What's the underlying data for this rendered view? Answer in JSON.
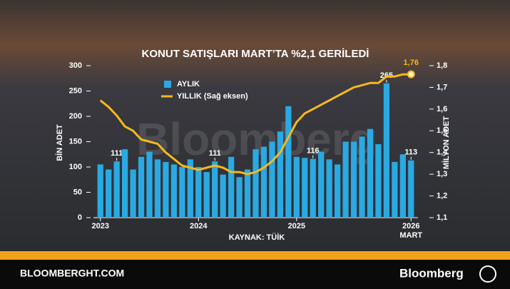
{
  "chart_data": {
    "type": "bar_line",
    "title": "KONUT SATIŞLARI MART’TA %2,1 GERİLEDİ",
    "y_label": "BİN ADET",
    "y2_label": "MİLYON ADET",
    "source": "KAYNAK: TÜİK",
    "watermark": "Bloomberg",
    "footer_left": "BLOOMBERGHT.COM",
    "footer_right": "Bloomberg",
    "categories": [
      "2023",
      null,
      null,
      null,
      null,
      null,
      null,
      null,
      null,
      null,
      null,
      null,
      "2024",
      null,
      null,
      null,
      null,
      null,
      null,
      null,
      null,
      null,
      null,
      null,
      "2025",
      null,
      null,
      null,
      null,
      null,
      null,
      null,
      null,
      null,
      null,
      null,
      null,
      null,
      "2026"
    ],
    "last_category_note": "MART",
    "ylim": [
      0,
      300
    ],
    "yticks": [
      0,
      50,
      100,
      150,
      200,
      250,
      300
    ],
    "y2lim": [
      1.1,
      1.8
    ],
    "y2ticks": [
      {
        "value": 1.1,
        "label": "1,1"
      },
      {
        "value": 1.2,
        "label": "1,2"
      },
      {
        "value": 1.3,
        "label": "1,3"
      },
      {
        "value": 1.4,
        "label": "1,4"
      },
      {
        "value": 1.5,
        "label": "1,5"
      },
      {
        "value": 1.6,
        "label": "1,6"
      },
      {
        "value": 1.7,
        "label": "1,7"
      },
      {
        "value": 1.8,
        "label": "1,8"
      }
    ],
    "series": [
      {
        "name": "AYLIK",
        "type": "bar",
        "color": "#2aa9e2",
        "values": [
          105,
          95,
          111,
          135,
          95,
          120,
          130,
          115,
          110,
          105,
          100,
          115,
          100,
          90,
          111,
          85,
          120,
          80,
          95,
          135,
          140,
          150,
          170,
          220,
          120,
          118,
          116,
          130,
          115,
          105,
          150,
          150,
          160,
          175,
          145,
          265,
          110,
          125,
          113
        ],
        "value_labels": [
          null,
          null,
          "111",
          null,
          null,
          null,
          null,
          null,
          null,
          null,
          null,
          null,
          null,
          null,
          "111",
          null,
          null,
          null,
          null,
          null,
          null,
          null,
          null,
          null,
          null,
          null,
          "116",
          null,
          null,
          null,
          null,
          null,
          null,
          null,
          null,
          "265",
          null,
          null,
          "113"
        ]
      },
      {
        "name": "YILLIK (Sağ eksen)",
        "type": "line",
        "axis": "y2",
        "color": "#f6b81e",
        "values": [
          1.64,
          1.61,
          1.57,
          1.52,
          1.5,
          1.46,
          1.45,
          1.44,
          1.4,
          1.37,
          1.34,
          1.33,
          1.32,
          1.33,
          1.34,
          1.33,
          1.31,
          1.31,
          1.3,
          1.31,
          1.33,
          1.36,
          1.4,
          1.47,
          1.54,
          1.58,
          1.6,
          1.62,
          1.64,
          1.66,
          1.68,
          1.7,
          1.71,
          1.72,
          1.72,
          1.75,
          1.75,
          1.76,
          1.76
        ],
        "value_labels": [
          null,
          null,
          null,
          null,
          null,
          null,
          null,
          null,
          null,
          null,
          null,
          null,
          null,
          null,
          null,
          null,
          null,
          null,
          null,
          null,
          null,
          null,
          null,
          null,
          null,
          null,
          null,
          null,
          null,
          null,
          null,
          null,
          null,
          null,
          null,
          null,
          null,
          null,
          "1,76"
        ]
      }
    ]
  }
}
